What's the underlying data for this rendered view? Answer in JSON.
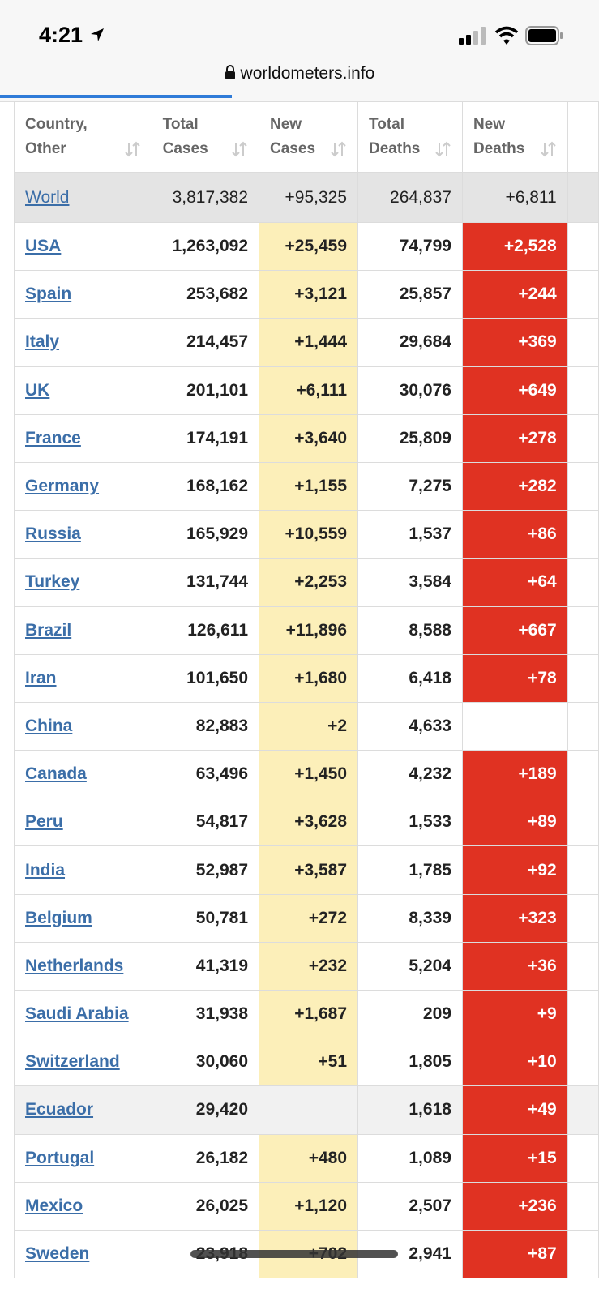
{
  "status_bar": {
    "time": "4:21"
  },
  "address_bar": {
    "url": "worldometers.info"
  },
  "table": {
    "headers": [
      "Country, Other",
      "Total Cases",
      "New Cases",
      "Total Deaths",
      "New Deaths"
    ],
    "rows": [
      [
        "World",
        "3,817,382",
        "+95,325",
        "264,837",
        "+6,811"
      ],
      [
        "USA",
        "1,263,092",
        "+25,459",
        "74,799",
        "+2,528"
      ],
      [
        "Spain",
        "253,682",
        "+3,121",
        "25,857",
        "+244"
      ],
      [
        "Italy",
        "214,457",
        "+1,444",
        "29,684",
        "+369"
      ],
      [
        "UK",
        "201,101",
        "+6,111",
        "30,076",
        "+649"
      ],
      [
        "France",
        "174,191",
        "+3,640",
        "25,809",
        "+278"
      ],
      [
        "Germany",
        "168,162",
        "+1,155",
        "7,275",
        "+282"
      ],
      [
        "Russia",
        "165,929",
        "+10,559",
        "1,537",
        "+86"
      ],
      [
        "Turkey",
        "131,744",
        "+2,253",
        "3,584",
        "+64"
      ],
      [
        "Brazil",
        "126,611",
        "+11,896",
        "8,588",
        "+667"
      ],
      [
        "Iran",
        "101,650",
        "+1,680",
        "6,418",
        "+78"
      ],
      [
        "China",
        "82,883",
        "+2",
        "4,633",
        null
      ],
      [
        "Canada",
        "63,496",
        "+1,450",
        "4,232",
        "+189"
      ],
      [
        "Peru",
        "54,817",
        "+3,628",
        "1,533",
        "+89"
      ],
      [
        "India",
        "52,987",
        "+3,587",
        "1,785",
        "+92"
      ],
      [
        "Belgium",
        "50,781",
        "+272",
        "8,339",
        "+323"
      ],
      [
        "Netherlands",
        "41,319",
        "+232",
        "5,204",
        "+36"
      ],
      [
        "Saudi Arabia",
        "31,938",
        "+1,687",
        "209",
        "+9"
      ],
      [
        "Switzerland",
        "30,060",
        "+51",
        "1,805",
        "+10"
      ],
      [
        "Ecuador",
        "29,420",
        null,
        "1,618",
        "+49"
      ],
      [
        "Portugal",
        "26,182",
        "+480",
        "1,089",
        "+15"
      ],
      [
        "Mexico",
        "26,025",
        "+1,120",
        "2,507",
        "+236"
      ],
      [
        "Sweden",
        "23,918",
        "+702",
        "2,941",
        "+87"
      ]
    ]
  }
}
